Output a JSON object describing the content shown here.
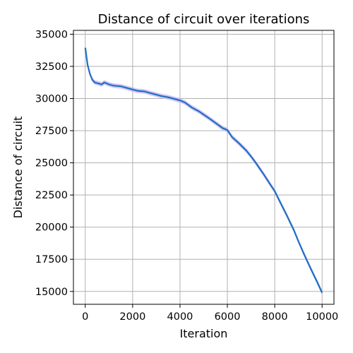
{
  "chart_data": {
    "type": "line",
    "title": "Distance of circuit over iterations",
    "xlabel": "Iteration",
    "ylabel": "Distance of circuit",
    "xlim": [
      -500,
      10500
    ],
    "ylim": [
      14000,
      35300
    ],
    "xticks": [
      0,
      2000,
      4000,
      6000,
      8000,
      10000
    ],
    "yticks": [
      15000,
      17500,
      20000,
      22500,
      25000,
      27500,
      30000,
      32500,
      35000
    ],
    "xtick_labels": [
      "0",
      "2000",
      "4000",
      "6000",
      "8000",
      "10000"
    ],
    "ytick_labels": [
      "15000",
      "17500",
      "20000",
      "22500",
      "25000",
      "27500",
      "30000",
      "32500",
      "35000"
    ],
    "grid": true,
    "colors": {
      "line": "#1f6fc5",
      "band": "#c7b6f2"
    },
    "series": [
      {
        "x": [
          0,
          100,
          200,
          300,
          400,
          500,
          700,
          800,
          1000,
          1200,
          1500,
          1800,
          2000,
          2200,
          2500,
          2800,
          3000,
          3200,
          3500,
          3800,
          4000,
          4200,
          4500,
          4800,
          5000,
          5200,
          5500,
          5800,
          6000,
          6200,
          6500,
          6800,
          7000,
          7200,
          7500,
          7800,
          8000,
          8200,
          8500,
          8800,
          9000,
          9200,
          9500,
          9800,
          10000
        ],
        "y": [
          33950,
          32600,
          31900,
          31450,
          31250,
          31200,
          31100,
          31250,
          31100,
          31000,
          30950,
          30800,
          30700,
          30600,
          30550,
          30400,
          30300,
          30200,
          30100,
          29950,
          29850,
          29700,
          29300,
          29000,
          28750,
          28500,
          28100,
          27700,
          27550,
          27000,
          26500,
          25950,
          25500,
          25000,
          24200,
          23350,
          22800,
          22050,
          20950,
          19800,
          18900,
          18050,
          16850,
          15700,
          14900
        ],
        "band": 180
      }
    ]
  }
}
